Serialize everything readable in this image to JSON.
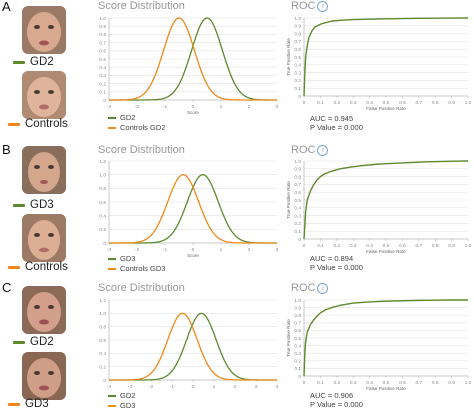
{
  "colors": {
    "green": "#5c8a2e",
    "orange": "#f0891c",
    "grid": "#e2e2e2",
    "axis": "#bbbbbb",
    "tick": "#888888"
  },
  "panels": [
    {
      "label": "A",
      "group1": "GD2",
      "group2": "Controls",
      "group1_color": "#5c8a2e",
      "group2_color": "#f0891c",
      "dist_title": "Score Distribution",
      "roc_title": "ROC",
      "legend1": "GD2",
      "legend2": "Controls GD2",
      "auc": "AUC = 0.945",
      "pvalue": "P Value = 0.000"
    },
    {
      "label": "B",
      "group1": "GD3",
      "group2": "Controls",
      "group1_color": "#5c8a2e",
      "group2_color": "#f0891c",
      "dist_title": "Score Distribution",
      "roc_title": "ROC",
      "legend1": "GD3",
      "legend2": "Controls GD3",
      "auc": "AUC = 0.894",
      "pvalue": "P Value = 0.000"
    },
    {
      "label": "C",
      "group1": "GD2",
      "group2": "GD3",
      "group1_color": "#5c8a2e",
      "group2_color": "#f0891c",
      "dist_title": "Score Distribution",
      "roc_title": "ROC",
      "legend1": "GD2",
      "legend2": "GD3",
      "auc": "AUC = 0.906",
      "pvalue": "P Value = 0.000"
    }
  ],
  "chart_data": [
    {
      "type": "line",
      "panel": "A",
      "title": "Score Distribution",
      "xlabel": "Score",
      "xlim": [
        -3,
        3
      ],
      "ylim": [
        0,
        1.0
      ],
      "xticks": [
        "-3",
        "-2",
        "-1",
        "0",
        "1",
        "2",
        "3"
      ],
      "yticks": [
        "0",
        "0.1",
        "0.2",
        "0.3",
        "0.4",
        "0.5",
        "0.6",
        "0.7",
        "0.8",
        "0.9",
        "1.0"
      ],
      "series": [
        {
          "name": "GD2",
          "color": "#5c8a2e",
          "mean": 0.5,
          "sd": 0.55,
          "peak": 1.0
        },
        {
          "name": "Controls GD2",
          "color": "#f0891c",
          "mean": -0.5,
          "sd": 0.55,
          "peak": 1.0
        }
      ]
    },
    {
      "type": "line",
      "panel": "A",
      "title": "ROC",
      "xlabel": "False Positive Rate",
      "ylabel": "True Positive Rate",
      "xlim": [
        0,
        1
      ],
      "ylim": [
        0,
        1
      ],
      "xticks": [
        "0",
        "0.1",
        "0.2",
        "0.3",
        "0.4",
        "0.5",
        "0.6",
        "0.7",
        "0.8",
        "0.9",
        "1.0"
      ],
      "yticks": [
        "0",
        "0.1",
        "0.2",
        "0.3",
        "0.4",
        "0.5",
        "0.6",
        "0.7",
        "0.8",
        "0.9",
        "1.0"
      ],
      "auc": 0.945,
      "p_value": 0.0,
      "x": [
        0,
        0.005,
        0.01,
        0.02,
        0.03,
        0.05,
        0.07,
        0.1,
        0.13,
        0.17,
        0.22,
        0.3,
        0.4,
        0.5,
        0.6,
        0.7,
        0.8,
        0.9,
        1.0
      ],
      "y": [
        0,
        0.3,
        0.5,
        0.65,
        0.75,
        0.84,
        0.89,
        0.92,
        0.94,
        0.96,
        0.97,
        0.98,
        0.985,
        0.99,
        0.993,
        0.996,
        0.998,
        0.999,
        1.0
      ]
    },
    {
      "type": "line",
      "panel": "B",
      "title": "Score Distribution",
      "xlabel": "Score",
      "xlim": [
        -3,
        3
      ],
      "ylim": [
        0,
        1.2
      ],
      "xticks": [
        "-3",
        "-2",
        "-1",
        "0",
        "1",
        "2",
        "3"
      ],
      "yticks": [
        "0",
        "0.2",
        "0.4",
        "0.6",
        "0.8",
        "1.0",
        "1.2"
      ],
      "series": [
        {
          "name": "GD3",
          "color": "#5c8a2e",
          "mean": 0.35,
          "sd": 0.55,
          "peak": 1.0
        },
        {
          "name": "Controls GD3",
          "color": "#f0891c",
          "mean": -0.35,
          "sd": 0.55,
          "peak": 1.0
        }
      ]
    },
    {
      "type": "line",
      "panel": "B",
      "title": "ROC",
      "xlabel": "False Positive Rate",
      "ylabel": "True Positive Rate",
      "xlim": [
        0,
        1
      ],
      "ylim": [
        0,
        1
      ],
      "xticks": [
        "0",
        "0.1",
        "0.2",
        "0.3",
        "0.4",
        "0.5",
        "0.6",
        "0.7",
        "0.8",
        "0.9",
        "1.0"
      ],
      "yticks": [
        "0",
        "0.1",
        "0.2",
        "0.3",
        "0.4",
        "0.5",
        "0.6",
        "0.7",
        "0.8",
        "0.9",
        "1.0"
      ],
      "auc": 0.894,
      "p_value": 0.0,
      "x": [
        0,
        0.01,
        0.02,
        0.04,
        0.06,
        0.08,
        0.1,
        0.13,
        0.17,
        0.22,
        0.28,
        0.35,
        0.45,
        0.55,
        0.65,
        0.75,
        0.85,
        0.95,
        1.0
      ],
      "y": [
        0,
        0.35,
        0.5,
        0.62,
        0.7,
        0.76,
        0.8,
        0.84,
        0.87,
        0.9,
        0.92,
        0.94,
        0.96,
        0.97,
        0.98,
        0.99,
        0.995,
        0.999,
        1.0
      ]
    },
    {
      "type": "line",
      "panel": "C",
      "title": "Score Distribution",
      "xlabel": "",
      "xlim": [
        -4,
        4
      ],
      "ylim": [
        0,
        1.2
      ],
      "xticks": [
        "-4",
        "-3",
        "-2",
        "-1",
        "0",
        "1",
        "2",
        "3",
        "4"
      ],
      "yticks": [
        "0",
        "0.2",
        "0.4",
        "0.6",
        "0.8",
        "1.0",
        "1.2"
      ],
      "series": [
        {
          "name": "GD2",
          "color": "#5c8a2e",
          "mean": 0.4,
          "sd": 0.7,
          "peak": 1.0
        },
        {
          "name": "GD3",
          "color": "#f0891c",
          "mean": -0.5,
          "sd": 0.7,
          "peak": 1.0
        }
      ]
    },
    {
      "type": "line",
      "panel": "C",
      "title": "ROC",
      "xlabel": "False Positive Rate",
      "ylabel": "True Positive Rate",
      "xlim": [
        0,
        1
      ],
      "ylim": [
        0,
        1
      ],
      "xticks": [
        "0",
        "0.1",
        "0.2",
        "0.3",
        "0.4",
        "0.5",
        "0.6",
        "0.7",
        "0.8",
        "0.9",
        "1.0"
      ],
      "yticks": [
        "0",
        "0.1",
        "0.2",
        "0.3",
        "0.4",
        "0.5",
        "0.6",
        "0.7",
        "0.8",
        "0.9",
        "1.0"
      ],
      "auc": 0.906,
      "p_value": 0.0,
      "x": [
        0,
        0.005,
        0.01,
        0.02,
        0.04,
        0.06,
        0.08,
        0.1,
        0.13,
        0.17,
        0.22,
        0.3,
        0.4,
        0.5,
        0.6,
        0.7,
        0.8,
        0.9,
        1.0
      ],
      "y": [
        0,
        0.3,
        0.45,
        0.58,
        0.68,
        0.74,
        0.79,
        0.83,
        0.87,
        0.9,
        0.93,
        0.96,
        0.975,
        0.985,
        0.99,
        0.995,
        0.998,
        1.0,
        1.0
      ]
    }
  ]
}
